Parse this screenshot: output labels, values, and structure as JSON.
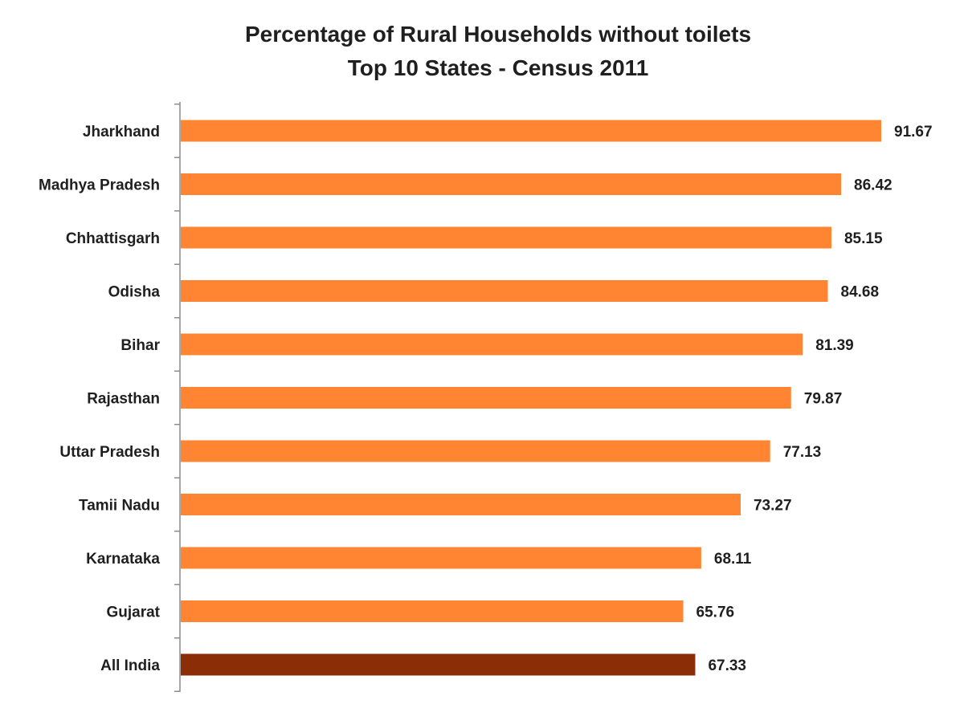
{
  "chart_data": {
    "type": "bar",
    "orientation": "horizontal",
    "title": "Percentage of Rural Households without toilets",
    "subtitle": "Top 10 States - Census 2011",
    "categories": [
      "Jharkhand",
      "Madhya Pradesh",
      "Chhattisgarh",
      "Odisha",
      "Bihar",
      "Rajasthan",
      "Uttar Pradesh",
      "Tamii Nadu",
      "Karnataka",
      "Gujarat",
      "All India"
    ],
    "values": [
      91.67,
      86.42,
      85.15,
      84.68,
      81.39,
      79.87,
      77.13,
      73.27,
      68.11,
      65.76,
      67.33
    ],
    "bar_colors": [
      "#ff8533",
      "#ff8533",
      "#ff8533",
      "#ff8533",
      "#ff8533",
      "#ff8533",
      "#ff8533",
      "#ff8533",
      "#ff8533",
      "#ff8533",
      "#8b2e08"
    ],
    "xlim": [
      0,
      100
    ],
    "xlabel": "",
    "ylabel": "",
    "grid": false,
    "legend": "none",
    "data_labels": [
      "91.67",
      "86.42",
      "85.15",
      "84.68",
      "81.39",
      "79.87",
      "77.13",
      "73.27",
      "68.11",
      "65.76",
      "67.33"
    ]
  }
}
